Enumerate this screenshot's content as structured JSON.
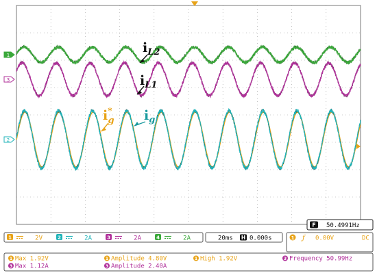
{
  "chart_data": {
    "type": "line",
    "title": "",
    "xlabel": "",
    "ylabel": "",
    "grid": true,
    "x_divisions": 10,
    "y_divisions": 8,
    "series": [
      {
        "name": "iL2",
        "channel": "1",
        "color": "#3aa83a",
        "shadow": "#1b5a1b",
        "offset_div": -2.2,
        "amplitude_div": 0.28,
        "cycles": 10.1,
        "phase_deg": 10,
        "noise_div": 0.06
      },
      {
        "name": "iL1",
        "channel": "3",
        "color": "#b0309a",
        "shadow": "#5e1450",
        "offset_div": -1.3,
        "amplitude_div": 0.6,
        "cycles": 10.1,
        "phase_deg": 30,
        "noise_div": 0.06
      },
      {
        "name": "ig*",
        "channel": "2",
        "color": "#e8a317",
        "shadow": "#e8a317",
        "offset_div": 0.9,
        "amplitude_div": 1.0,
        "cycles": 10.1,
        "phase_deg": 0,
        "noise_div": 0.0
      },
      {
        "name": "ig",
        "channel": "2",
        "color": "#1fb3b8",
        "shadow": "#145a5c",
        "offset_div": 0.9,
        "amplitude_div": 1.05,
        "cycles": 10.1,
        "phase_deg": 4,
        "noise_div": 0.07
      }
    ],
    "annotations": [
      {
        "main": "i",
        "sub": "L2",
        "sup": "",
        "color": "#111111"
      },
      {
        "main": "i",
        "sub": "L1",
        "sup": "",
        "color": "#111111"
      },
      {
        "main": "i",
        "sub": "g",
        "sup": "*",
        "color": "#e8a317"
      },
      {
        "main": "i",
        "sub": "g",
        "sup": "",
        "color": "#1a9a9e"
      }
    ],
    "channel_markers": [
      {
        "label": "1",
        "color": "#3aa83a"
      },
      {
        "label": "3",
        "color": "#b0309a"
      },
      {
        "label": "2",
        "color": "#1fb3b8"
      }
    ]
  },
  "readouts": {
    "frequency_box": "50.4991Hz",
    "frequency_box_icon": "F",
    "channels": [
      {
        "num": "1",
        "scale": "2V",
        "color": "#e8a317"
      },
      {
        "num": "2",
        "scale": "2A",
        "color": "#1fb3b8"
      },
      {
        "num": "3",
        "scale": "2A",
        "color": "#b0309a"
      },
      {
        "num": "4",
        "scale": "2A",
        "color": "#3aa83a"
      }
    ],
    "timebase": "20ms",
    "timebase_icon": "H",
    "delay": "0.000s",
    "trigger_channel": "1",
    "trigger_level": "0.00V",
    "trigger_coupling": "DC",
    "stats": [
      {
        "num": "1",
        "text": "Max 1.92V",
        "color": "#e8a317"
      },
      {
        "num": "1",
        "text": "Amplitude 4.80V",
        "color": "#e8a317"
      },
      {
        "num": "1",
        "text": "High 1.92V",
        "color": "#e8a317"
      },
      {
        "num": "3",
        "text": "Frequency 50.99Hz",
        "color": "#b0309a"
      },
      {
        "num": "3",
        "text": "Max 1.12A",
        "color": "#b0309a"
      },
      {
        "num": "3",
        "text": "Amplitude 2.40A",
        "color": "#b0309a"
      }
    ]
  }
}
